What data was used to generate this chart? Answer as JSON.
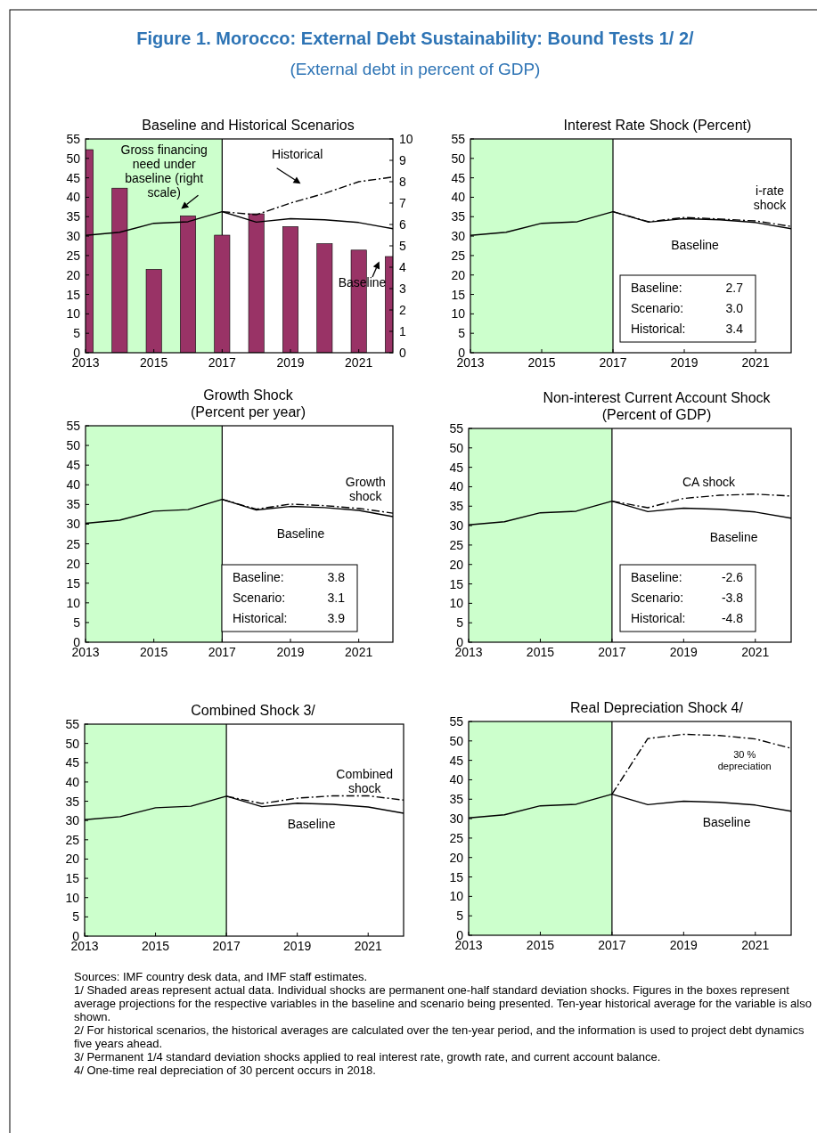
{
  "chart_data": [
    {
      "type": "other",
      "title": "Figure 1. Morocco: External Debt Sustainability: Bound Tests 1/ 2/",
      "subtitle": "(External debt in percent of GDP)"
    },
    {
      "type": "line",
      "title": "Baseline and Historical Scenarios",
      "x": [
        2013,
        2014,
        2015,
        2016,
        2017,
        2018,
        2019,
        2020,
        2021,
        2022
      ],
      "xlim": [
        2013,
        2022
      ],
      "xticks": [
        2013,
        2015,
        2017,
        2019,
        2021
      ],
      "ylim": [
        0,
        55
      ],
      "yticks": [
        0,
        5,
        10,
        15,
        20,
        25,
        30,
        35,
        40,
        45,
        50,
        55
      ],
      "y2lim": [
        0,
        10
      ],
      "y2ticks": [
        0,
        1,
        2,
        3,
        4,
        5,
        6,
        7,
        8,
        9,
        10
      ],
      "bands": [
        {
          "axis": "x",
          "from": 2013,
          "to": 2017,
          "color": "#ccffcc"
        }
      ],
      "ref_lines": [
        {
          "axis": "x",
          "value": 2017,
          "color": "#000000"
        }
      ],
      "series": [
        {
          "name": "Gross financing need under baseline (right scale)",
          "type": "bar",
          "axis": "y2",
          "color": "#993366",
          "values": [
            9.5,
            7.7,
            3.9,
            6.4,
            5.5,
            6.5,
            5.9,
            5.1,
            4.8,
            4.5
          ]
        },
        {
          "name": "Baseline",
          "color": "#000000",
          "line_style": "solid",
          "values": [
            30.2,
            31.0,
            33.3,
            33.7,
            36.3,
            33.6,
            34.5,
            34.2,
            33.5,
            31.9
          ]
        },
        {
          "name": "Historical",
          "color": "#000000",
          "line_style": "dashed",
          "values": [
            null,
            null,
            null,
            null,
            36.3,
            35.5,
            38.5,
            41.0,
            44.0,
            45.2
          ]
        }
      ]
    },
    {
      "type": "line",
      "title": "Interest Rate Shock (Percent)",
      "x": [
        2013,
        2014,
        2015,
        2016,
        2017,
        2018,
        2019,
        2020,
        2021,
        2022
      ],
      "xlim": [
        2013,
        2022
      ],
      "xticks": [
        2013,
        2015,
        2017,
        2019,
        2021
      ],
      "ylim": [
        0,
        55
      ],
      "yticks": [
        0,
        5,
        10,
        15,
        20,
        25,
        30,
        35,
        40,
        45,
        50,
        55
      ],
      "bands": [
        {
          "axis": "x",
          "from": 2013,
          "to": 2017,
          "color": "#ccffcc"
        }
      ],
      "ref_lines": [
        {
          "axis": "x",
          "value": 2017,
          "color": "#000000"
        }
      ],
      "annotations": [
        "Baseline: 2.7",
        "Scenario: 3.0",
        "Historical: 3.4"
      ],
      "series": [
        {
          "name": "Baseline",
          "color": "#000000",
          "line_style": "solid",
          "values": [
            30.2,
            31.0,
            33.3,
            33.7,
            36.3,
            33.6,
            34.5,
            34.2,
            33.5,
            31.9
          ]
        },
        {
          "name": "i-rate shock",
          "color": "#000000",
          "line_style": "dashed",
          "values": [
            null,
            null,
            null,
            null,
            36.3,
            33.7,
            34.8,
            34.4,
            33.9,
            32.5
          ]
        }
      ]
    },
    {
      "type": "line",
      "title": "Growth Shock",
      "subtitle": "(Percent per year)",
      "x": [
        2013,
        2014,
        2015,
        2016,
        2017,
        2018,
        2019,
        2020,
        2021,
        2022
      ],
      "xlim": [
        2013,
        2022
      ],
      "xticks": [
        2013,
        2015,
        2017,
        2019,
        2021
      ],
      "ylim": [
        0,
        55
      ],
      "yticks": [
        0,
        5,
        10,
        15,
        20,
        25,
        30,
        35,
        40,
        45,
        50,
        55
      ],
      "bands": [
        {
          "axis": "x",
          "from": 2013,
          "to": 2017,
          "color": "#ccffcc"
        }
      ],
      "ref_lines": [
        {
          "axis": "x",
          "value": 2017,
          "color": "#000000"
        }
      ],
      "annotations": [
        "Baseline: 3.8",
        "Scenario: 3.1",
        "Historical: 3.9"
      ],
      "series": [
        {
          "name": "Baseline",
          "color": "#000000",
          "line_style": "solid",
          "values": [
            30.2,
            31.0,
            33.3,
            33.7,
            36.3,
            33.6,
            34.5,
            34.2,
            33.5,
            31.9
          ]
        },
        {
          "name": "Growth shock",
          "color": "#000000",
          "line_style": "dashed",
          "values": [
            null,
            null,
            null,
            null,
            36.3,
            33.8,
            35.1,
            34.7,
            34.0,
            32.8
          ]
        }
      ]
    },
    {
      "type": "line",
      "title": "Non-interest Current Account Shock",
      "subtitle": "(Percent of GDP)",
      "x": [
        2013,
        2014,
        2015,
        2016,
        2017,
        2018,
        2019,
        2020,
        2021,
        2022
      ],
      "xlim": [
        2013,
        2022
      ],
      "xticks": [
        2013,
        2015,
        2017,
        2019,
        2021
      ],
      "ylim": [
        0,
        55
      ],
      "yticks": [
        0,
        5,
        10,
        15,
        20,
        25,
        30,
        35,
        40,
        45,
        50,
        55
      ],
      "bands": [
        {
          "axis": "x",
          "from": 2013,
          "to": 2017,
          "color": "#ccffcc"
        }
      ],
      "ref_lines": [
        {
          "axis": "x",
          "value": 2017,
          "color": "#000000"
        }
      ],
      "annotations": [
        "Baseline: -2.6",
        "Scenario: -3.8",
        "Historical: -4.8"
      ],
      "series": [
        {
          "name": "Baseline",
          "color": "#000000",
          "line_style": "solid",
          "values": [
            30.2,
            31.0,
            33.3,
            33.7,
            36.3,
            33.6,
            34.5,
            34.2,
            33.5,
            31.9
          ]
        },
        {
          "name": "CA shock",
          "color": "#000000",
          "line_style": "dashed",
          "values": [
            null,
            null,
            null,
            null,
            36.3,
            34.6,
            37.0,
            37.8,
            38.1,
            37.6
          ]
        }
      ]
    },
    {
      "type": "line",
      "title": "Combined Shock  3/",
      "x": [
        2013,
        2014,
        2015,
        2016,
        2017,
        2018,
        2019,
        2020,
        2021,
        2022
      ],
      "xlim": [
        2013,
        2022
      ],
      "xticks": [
        2013,
        2015,
        2017,
        2019,
        2021
      ],
      "ylim": [
        0,
        55
      ],
      "yticks": [
        0,
        5,
        10,
        15,
        20,
        25,
        30,
        35,
        40,
        45,
        50,
        55
      ],
      "bands": [
        {
          "axis": "x",
          "from": 2013,
          "to": 2017,
          "color": "#ccffcc"
        }
      ],
      "ref_lines": [
        {
          "axis": "x",
          "value": 2017,
          "color": "#000000"
        }
      ],
      "series": [
        {
          "name": "Baseline",
          "color": "#000000",
          "line_style": "solid",
          "values": [
            30.2,
            31.0,
            33.3,
            33.7,
            36.3,
            33.6,
            34.5,
            34.2,
            33.5,
            31.9
          ]
        },
        {
          "name": "Combined shock",
          "color": "#000000",
          "line_style": "dashed",
          "values": [
            null,
            null,
            null,
            null,
            36.3,
            34.4,
            35.8,
            36.4,
            36.4,
            35.3
          ]
        }
      ]
    },
    {
      "type": "line",
      "title": "Real Depreciation Shock  4/",
      "x": [
        2013,
        2014,
        2015,
        2016,
        2017,
        2018,
        2019,
        2020,
        2021,
        2022
      ],
      "xlim": [
        2013,
        2022
      ],
      "xticks": [
        2013,
        2015,
        2017,
        2019,
        2021
      ],
      "ylim": [
        0,
        55
      ],
      "yticks": [
        0,
        5,
        10,
        15,
        20,
        25,
        30,
        35,
        40,
        45,
        50,
        55
      ],
      "bands": [
        {
          "axis": "x",
          "from": 2013,
          "to": 2017,
          "color": "#ccffcc"
        }
      ],
      "ref_lines": [
        {
          "axis": "x",
          "value": 2017,
          "color": "#000000"
        }
      ],
      "series": [
        {
          "name": "Baseline",
          "color": "#000000",
          "line_style": "solid",
          "values": [
            30.2,
            31.0,
            33.3,
            33.7,
            36.3,
            33.6,
            34.5,
            34.2,
            33.5,
            31.9
          ]
        },
        {
          "name": "30 % depreciation",
          "color": "#000000",
          "line_style": "dashed",
          "values": [
            null,
            null,
            null,
            null,
            36.3,
            50.6,
            51.7,
            51.4,
            50.5,
            48.1
          ]
        }
      ]
    },
    {
      "type": "other",
      "annotations": [
        "Sources: IMF country desk data, and IMF staff estimates.",
        "1/ Shaded areas represent actual data. Individual shocks are permanent one-half standard deviation shocks. Figures in the boxes represent average projections for the respective variables in the baseline and scenario being presented. Ten-year historical average for the variable is also shown.",
        "2/ For historical scenarios, the historical averages are calculated over the ten-year period, and the information is used to project debt dynamics five years ahead.",
        "3/ Permanent 1/4 standard deviation shocks applied to real interest rate, growth rate, and current account balance.",
        "4/ One-time real depreciation of 30 percent occurs in 2018."
      ]
    }
  ]
}
